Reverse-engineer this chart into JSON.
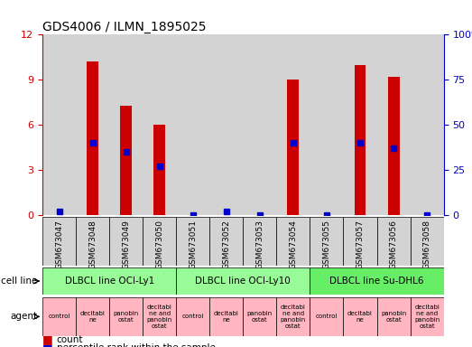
{
  "title": "GDS4006 / ILMN_1895025",
  "samples": [
    "GSM673047",
    "GSM673048",
    "GSM673049",
    "GSM673050",
    "GSM673051",
    "GSM673052",
    "GSM673053",
    "GSM673054",
    "GSM673055",
    "GSM673057",
    "GSM673056",
    "GSM673058"
  ],
  "counts": [
    0,
    10.2,
    7.3,
    6.0,
    0,
    0,
    0,
    9.0,
    0,
    10.0,
    9.2,
    0
  ],
  "percentile_ranks": [
    2,
    40,
    35,
    27,
    0,
    2,
    0,
    40,
    0,
    40,
    37,
    0
  ],
  "ylim_left": [
    0,
    12
  ],
  "ylim_right": [
    0,
    100
  ],
  "yticks_left": [
    0,
    3,
    6,
    9,
    12
  ],
  "yticks_right": [
    0,
    25,
    50,
    75,
    100
  ],
  "group_ranges": [
    [
      0,
      3,
      "DLBCL line OCI-Ly1"
    ],
    [
      4,
      7,
      "DLBCL line OCI-Ly10"
    ],
    [
      8,
      11,
      "DLBCL line Su-DHL6"
    ]
  ],
  "group_colors": [
    "#98FB98",
    "#90EE90",
    "#00EE00"
  ],
  "agent_labels": [
    "control",
    "decitabi\nne",
    "panobin\nostat",
    "decitabi\nne and\npanobin\nostat",
    "control",
    "decitabi\nne",
    "panobin\nostat",
    "decitabi\nne and\npanobin\nostat",
    "control",
    "decitabi\nne",
    "panobin\nostat",
    "decitabi\nne and\npanobin\nostat"
  ],
  "agent_color": "#FFB6C1",
  "bar_color": "#CC0000",
  "dot_color": "#0000CC",
  "tick_color_left": "#CC0000",
  "tick_color_right": "#0000CC",
  "bg_color": "#FFFFFF",
  "sample_bg": "#D3D3D3",
  "cell_line_colors": [
    "#98FB98",
    "#98FB98",
    "#66DD66"
  ]
}
